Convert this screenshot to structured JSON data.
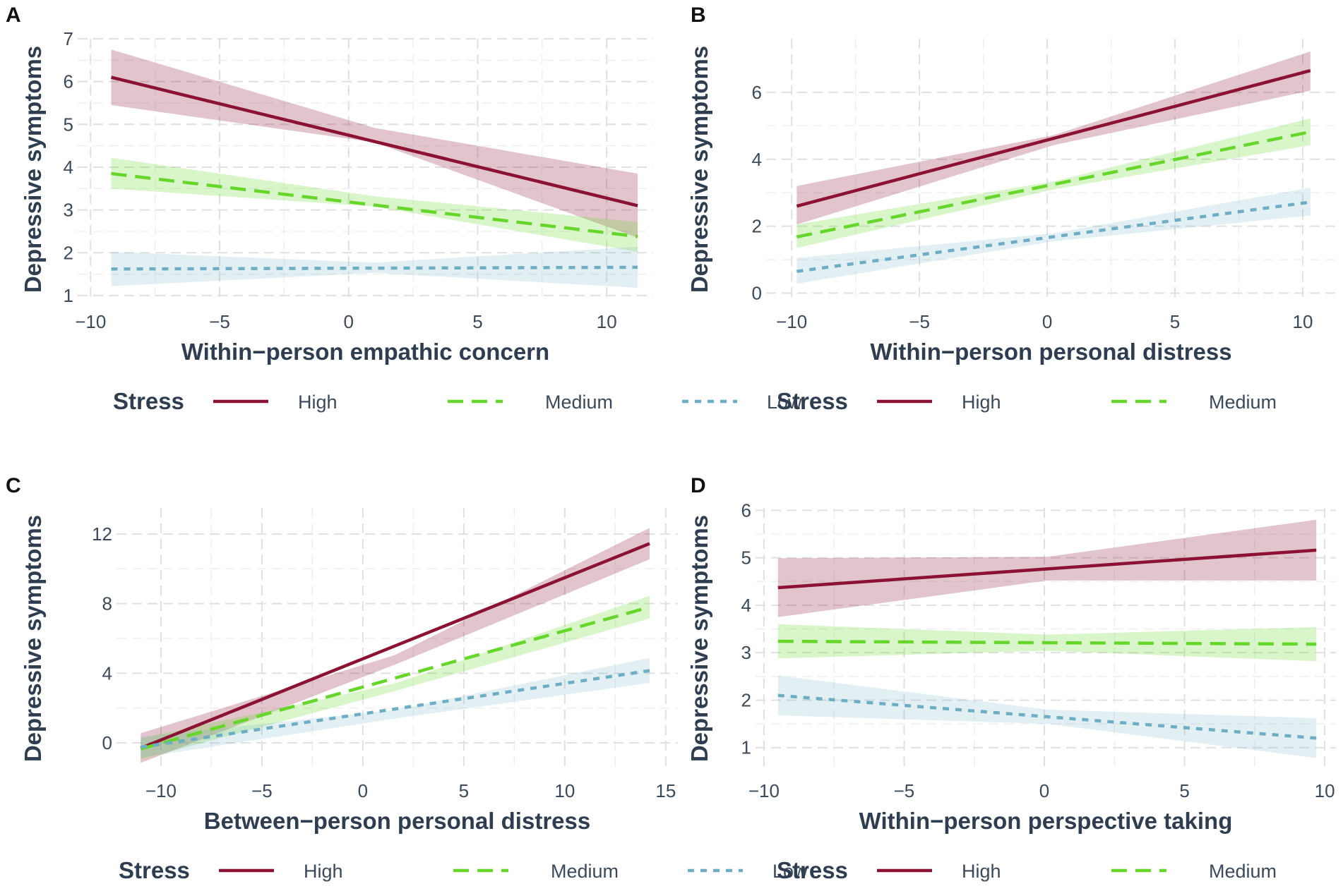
{
  "colors": {
    "High": "#8b1232",
    "Medium": "#66d62a",
    "Low": "#6eaec4",
    "grid": "#e0e0e0",
    "text": "#3b4a5a"
  },
  "legend": {
    "title": "Stress",
    "labels": [
      "High",
      "Medium",
      "Low"
    ]
  },
  "chart_data": [
    {
      "id": "A",
      "type": "line",
      "xlabel": "Within−person empathic concern",
      "ylabel": "Depressive symptoms",
      "xlim": [
        -10.5,
        11.8
      ],
      "ylim": [
        0.9,
        7.0
      ],
      "xticks": [
        -10,
        -5,
        0,
        5,
        10
      ],
      "yticks": [
        1,
        2,
        3,
        4,
        5,
        6,
        7
      ],
      "xtick_labels": [
        "−10",
        "−5",
        "0",
        "5",
        "10"
      ],
      "ytick_labels": [
        "1",
        "2",
        "3",
        "4",
        "5",
        "6",
        "7"
      ],
      "x_range": [
        -9.2,
        11.2
      ],
      "series": [
        {
          "name": "High",
          "start": 6.1,
          "end": 3.1,
          "lo0": 5.45,
          "hi0": 6.75,
          "loc": 4.58,
          "hic": 4.92,
          "lo1": 2.35,
          "hi1": 3.85
        },
        {
          "name": "Medium",
          "start": 3.85,
          "end": 2.38,
          "lo0": 3.5,
          "hi0": 4.22,
          "loc": 3.08,
          "hic": 3.32,
          "lo1": 2.02,
          "hi1": 2.72
        },
        {
          "name": "Low",
          "start": 1.62,
          "end": 1.66,
          "lo0": 1.22,
          "hi0": 2.02,
          "loc": 1.53,
          "hic": 1.77,
          "lo1": 1.18,
          "hi1": 2.14
        }
      ]
    },
    {
      "id": "B",
      "type": "line",
      "xlabel": "Within−person personal distress",
      "ylabel": "Depressive symptoms",
      "xlim": [
        -11.0,
        11.3
      ],
      "ylim": [
        -0.2,
        7.6
      ],
      "xticks": [
        -10,
        -5,
        0,
        5,
        10
      ],
      "yticks": [
        0,
        2,
        4,
        6
      ],
      "xtick_labels": [
        "−10",
        "−5",
        "0",
        "5",
        "10"
      ],
      "ytick_labels": [
        "0",
        "2",
        "4",
        "6"
      ],
      "x_range": [
        -9.8,
        10.3
      ],
      "series": [
        {
          "name": "High",
          "start": 2.6,
          "end": 6.65,
          "lo0": 2.05,
          "hi0": 3.2,
          "loc": 4.42,
          "hic": 4.72,
          "lo1": 6.05,
          "hi1": 7.22
        },
        {
          "name": "Medium",
          "start": 1.68,
          "end": 4.82,
          "lo0": 1.35,
          "hi0": 2.05,
          "loc": 3.1,
          "hic": 3.34,
          "lo1": 4.42,
          "hi1": 5.22
        },
        {
          "name": "Low",
          "start": 0.65,
          "end": 2.72,
          "lo0": 0.28,
          "hi0": 1.05,
          "loc": 1.55,
          "hic": 1.79,
          "lo1": 2.32,
          "hi1": 3.15
        }
      ]
    },
    {
      "id": "C",
      "type": "line",
      "xlabel": "Between−person personal distress",
      "ylabel": "Depressive symptoms",
      "xlim": [
        -12.2,
        15.6
      ],
      "ylim": [
        -1.5,
        13.5
      ],
      "xticks": [
        -10,
        -5,
        0,
        5,
        10,
        15
      ],
      "yticks": [
        0,
        4,
        8,
        12
      ],
      "xtick_labels": [
        "−10",
        "−5",
        "0",
        "5",
        "10",
        "15"
      ],
      "ytick_labels": [
        "0",
        "4",
        "8",
        "12"
      ],
      "x_range": [
        -11.0,
        14.2
      ],
      "series": [
        {
          "name": "High",
          "start": -0.3,
          "end": 11.45,
          "lo0": -1.15,
          "hi0": 0.55,
          "loc": 4.5,
          "hic": 5.05,
          "lo1": 10.55,
          "hi1": 12.35
        },
        {
          "name": "Medium",
          "start": -0.35,
          "end": 7.8,
          "lo0": -0.95,
          "hi0": 0.25,
          "loc": 2.98,
          "hic": 3.42,
          "lo1": 7.15,
          "hi1": 8.45
        },
        {
          "name": "Low",
          "start": -0.25,
          "end": 4.15,
          "lo0": -0.85,
          "hi0": 0.35,
          "loc": 1.4,
          "hic": 1.9,
          "lo1": 3.45,
          "hi1": 4.88
        }
      ]
    },
    {
      "id": "D",
      "type": "line",
      "xlabel": "Within−person perspective taking",
      "ylabel": "Depressive symptoms",
      "xlim": [
        -10.3,
        10.4
      ],
      "ylim": [
        0.55,
        6.05
      ],
      "xticks": [
        -10,
        -5,
        0,
        5,
        10
      ],
      "yticks": [
        1,
        2,
        3,
        4,
        5,
        6
      ],
      "xtick_labels": [
        "−10",
        "−5",
        "0",
        "5",
        "10"
      ],
      "ytick_labels": [
        "1",
        "2",
        "3",
        "4",
        "5",
        "6"
      ],
      "x_range": [
        -9.5,
        9.7
      ],
      "series": [
        {
          "name": "High",
          "start": 4.37,
          "end": 5.16,
          "lo0": 3.75,
          "hi0": 4.99,
          "loc": 4.52,
          "hic": 5.02,
          "lo1": 4.52,
          "hi1": 5.8
        },
        {
          "name": "Medium",
          "start": 3.24,
          "end": 3.18,
          "lo0": 2.88,
          "hi0": 3.6,
          "loc": 3.04,
          "hic": 3.38,
          "lo1": 2.82,
          "hi1": 3.54
        },
        {
          "name": "Low",
          "start": 2.1,
          "end": 1.2,
          "lo0": 1.68,
          "hi0": 2.52,
          "loc": 1.5,
          "hic": 1.8,
          "lo1": 0.78,
          "hi1": 1.62
        }
      ]
    }
  ]
}
